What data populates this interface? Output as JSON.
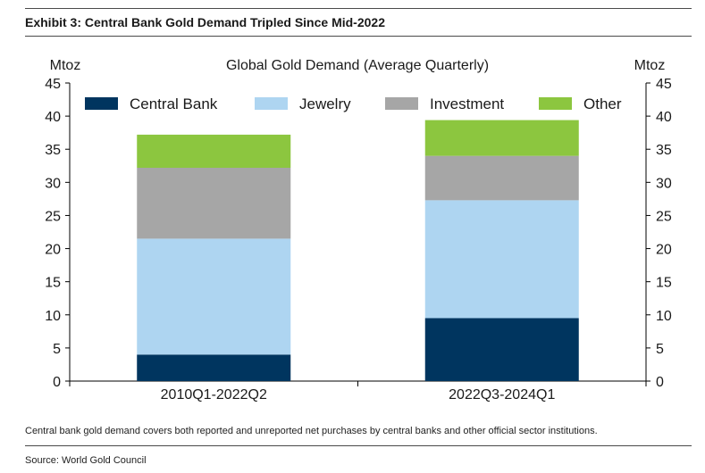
{
  "exhibit": {
    "title": "Exhibit 3: Central Bank Gold Demand Tripled Since Mid-2022",
    "footnote": "Central bank gold demand covers both reported and unreported net purchases by central banks and other official sector institutions.",
    "source": "Source: World Gold Council"
  },
  "chart_data": {
    "type": "bar",
    "stacked": true,
    "title": "Global Gold Demand (Average Quarterly)",
    "ylabel_left": "Mtoz",
    "ylabel_right": "Mtoz",
    "ylim": [
      0,
      45
    ],
    "yticks": [
      0,
      5,
      10,
      15,
      20,
      25,
      30,
      35,
      40,
      45
    ],
    "grid": false,
    "legend_position": "top",
    "categories": [
      "2010Q1-2022Q2",
      "2022Q3-2024Q1"
    ],
    "series": [
      {
        "name": "Central Bank",
        "color": "#00355f",
        "values": [
          4.0,
          9.5
        ]
      },
      {
        "name": "Jewelry",
        "color": "#aed5f1",
        "values": [
          17.5,
          17.8
        ]
      },
      {
        "name": "Investment",
        "color": "#a6a6a6",
        "values": [
          10.7,
          6.7
        ]
      },
      {
        "name": "Other",
        "color": "#8cc63f",
        "values": [
          5.0,
          5.4
        ]
      }
    ]
  }
}
